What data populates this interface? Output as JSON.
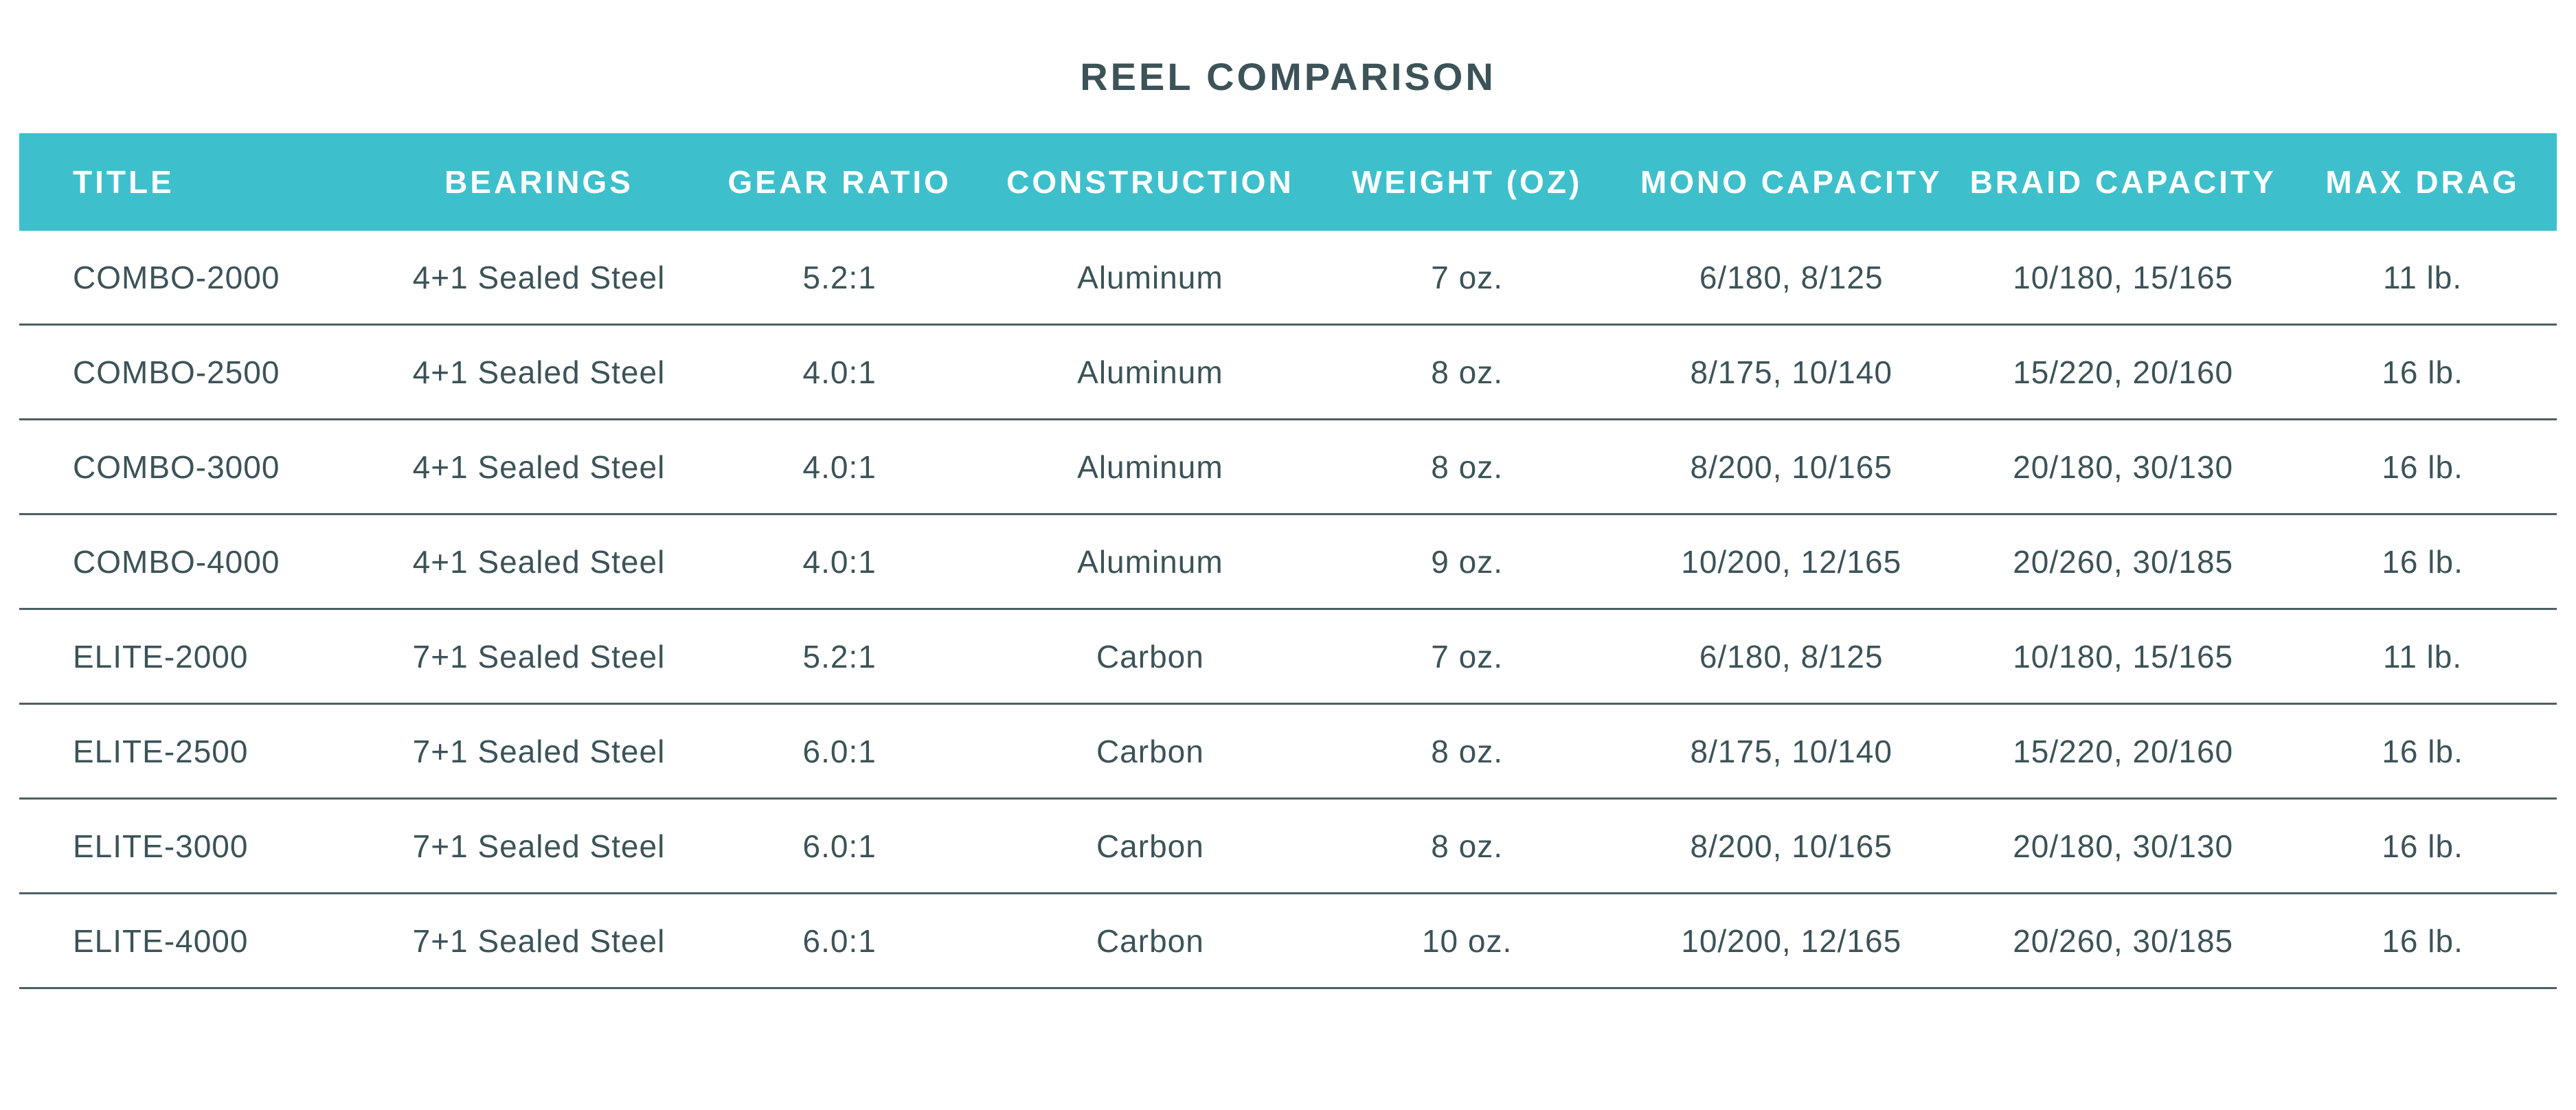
{
  "title": "REEL COMPARISON",
  "table": {
    "columns": [
      "TITLE",
      "BEARINGS",
      "GEAR RATIO",
      "CONSTRUCTION",
      "WEIGHT (OZ)",
      "MONO CAPACITY",
      "BRAID CAPACITY",
      "MAX DRAG"
    ],
    "rows": [
      [
        "COMBO-2000",
        "4+1 Sealed Steel",
        "5.2:1",
        "Aluminum",
        "7 oz.",
        "6/180, 8/125",
        "10/180, 15/165",
        "11 lb."
      ],
      [
        "COMBO-2500",
        "4+1 Sealed Steel",
        "4.0:1",
        "Aluminum",
        "8 oz.",
        "8/175, 10/140",
        "15/220, 20/160",
        "16 lb."
      ],
      [
        "COMBO-3000",
        "4+1 Sealed Steel",
        "4.0:1",
        "Aluminum",
        "8 oz.",
        "8/200, 10/165",
        "20/180, 30/130",
        "16 lb."
      ],
      [
        "COMBO-4000",
        "4+1 Sealed Steel",
        "4.0:1",
        "Aluminum",
        "9 oz.",
        "10/200, 12/165",
        "20/260, 30/185",
        "16 lb."
      ],
      [
        "ELITE-2000",
        "7+1 Sealed Steel",
        "5.2:1",
        "Carbon",
        "7 oz.",
        "6/180, 8/125",
        "10/180, 15/165",
        "11 lb."
      ],
      [
        "ELITE-2500",
        "7+1 Sealed Steel",
        "6.0:1",
        "Carbon",
        "8 oz.",
        "8/175, 10/140",
        "15/220, 20/160",
        "16 lb."
      ],
      [
        "ELITE-3000",
        "7+1 Sealed Steel",
        "6.0:1",
        "Carbon",
        "8 oz.",
        "8/200, 10/165",
        "20/180, 30/130",
        "16 lb."
      ],
      [
        "ELITE-4000",
        "7+1 Sealed Steel",
        "6.0:1",
        "Carbon",
        "10 oz.",
        "10/200, 12/165",
        "20/260, 30/185",
        "16 lb."
      ]
    ]
  },
  "chart_data": {
    "type": "table",
    "title": "REEL COMPARISON",
    "columns": [
      "TITLE",
      "BEARINGS",
      "GEAR RATIO",
      "CONSTRUCTION",
      "WEIGHT (OZ)",
      "MONO CAPACITY",
      "BRAID CAPACITY",
      "MAX DRAG"
    ],
    "rows": [
      [
        "COMBO-2000",
        "4+1 Sealed Steel",
        "5.2:1",
        "Aluminum",
        "7 oz.",
        "6/180, 8/125",
        "10/180, 15/165",
        "11 lb."
      ],
      [
        "COMBO-2500",
        "4+1 Sealed Steel",
        "4.0:1",
        "Aluminum",
        "8 oz.",
        "8/175, 10/140",
        "15/220, 20/160",
        "16 lb."
      ],
      [
        "COMBO-3000",
        "4+1 Sealed Steel",
        "4.0:1",
        "Aluminum",
        "8 oz.",
        "8/200, 10/165",
        "20/180, 30/130",
        "16 lb."
      ],
      [
        "COMBO-4000",
        "4+1 Sealed Steel",
        "4.0:1",
        "Aluminum",
        "9 oz.",
        "10/200, 12/165",
        "20/260, 30/185",
        "16 lb."
      ],
      [
        "ELITE-2000",
        "7+1 Sealed Steel",
        "5.2:1",
        "Carbon",
        "7 oz.",
        "6/180, 8/125",
        "10/180, 15/165",
        "11 lb."
      ],
      [
        "ELITE-2500",
        "7+1 Sealed Steel",
        "6.0:1",
        "Carbon",
        "8 oz.",
        "8/175, 10/140",
        "15/220, 20/160",
        "16 lb."
      ],
      [
        "ELITE-3000",
        "7+1 Sealed Steel",
        "6.0:1",
        "Carbon",
        "8 oz.",
        "8/200, 10/165",
        "20/180, 30/130",
        "16 lb."
      ],
      [
        "ELITE-4000",
        "7+1 Sealed Steel",
        "6.0:1",
        "Carbon",
        "10 oz.",
        "10/200, 12/165",
        "20/260, 30/185",
        "16 lb."
      ]
    ]
  },
  "colors": {
    "header_bg": "#3EBFCC",
    "header_text": "#FFFFFF",
    "body_text": "#3C5358",
    "title_text": "#3C5358",
    "divider": "#4D5F63",
    "background": "#FFFFFF"
  }
}
